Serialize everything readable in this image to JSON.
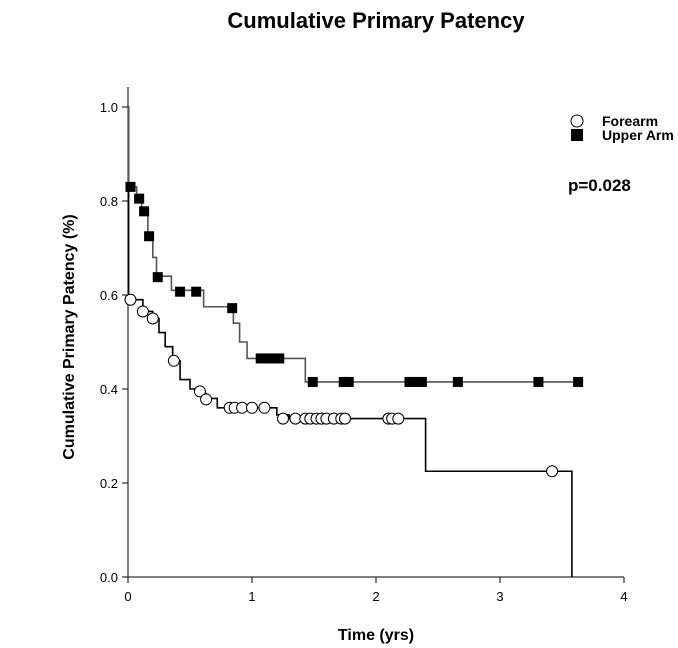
{
  "chart_data": {
    "type": "line",
    "title": "Cumulative Primary Patency",
    "xlabel": "Time (yrs)",
    "ylabel": "Cumulative Primary Patency (%)",
    "xlim": [
      0,
      4
    ],
    "ylim": [
      0,
      1.0
    ],
    "x_ticks": [
      "0",
      "1",
      "2",
      "3",
      "4"
    ],
    "y_ticks": [
      "0.0",
      "0.2",
      "0.4",
      "0.6",
      "0.8",
      "1.0"
    ],
    "annotation": "p=0.028",
    "legend_position": "top-right",
    "series": [
      {
        "name": "Forearm",
        "color": "#000000",
        "marker": "open-circle",
        "step_points": [
          [
            0,
            1.0
          ],
          [
            0.005,
            0.6
          ],
          [
            0.04,
            0.59
          ],
          [
            0.12,
            0.565
          ],
          [
            0.2,
            0.55
          ],
          [
            0.25,
            0.52
          ],
          [
            0.3,
            0.49
          ],
          [
            0.36,
            0.46
          ],
          [
            0.42,
            0.42
          ],
          [
            0.5,
            0.4
          ],
          [
            0.58,
            0.39
          ],
          [
            0.63,
            0.38
          ],
          [
            0.72,
            0.36
          ],
          [
            1.2,
            0.345
          ],
          [
            1.3,
            0.337
          ],
          [
            2.4,
            0.225
          ],
          [
            3.58,
            0.0
          ]
        ],
        "censored": [
          [
            0.02,
            0.59
          ],
          [
            0.12,
            0.565
          ],
          [
            0.2,
            0.55
          ],
          [
            0.37,
            0.46
          ],
          [
            0.58,
            0.395
          ],
          [
            0.63,
            0.378
          ],
          [
            0.82,
            0.36
          ],
          [
            0.86,
            0.36
          ],
          [
            0.92,
            0.36
          ],
          [
            1.0,
            0.36
          ],
          [
            1.1,
            0.36
          ],
          [
            1.25,
            0.337
          ],
          [
            1.35,
            0.337
          ],
          [
            1.43,
            0.337
          ],
          [
            1.47,
            0.337
          ],
          [
            1.52,
            0.337
          ],
          [
            1.56,
            0.337
          ],
          [
            1.6,
            0.337
          ],
          [
            1.66,
            0.337
          ],
          [
            1.72,
            0.337
          ],
          [
            1.75,
            0.337
          ],
          [
            2.1,
            0.337
          ],
          [
            2.13,
            0.337
          ],
          [
            2.18,
            0.337
          ],
          [
            3.42,
            0.225
          ]
        ]
      },
      {
        "name": "Upper Arm",
        "color": "#555555",
        "marker": "filled-square",
        "step_points": [
          [
            0,
            1.0
          ],
          [
            0.005,
            0.83
          ],
          [
            0.07,
            0.81
          ],
          [
            0.11,
            0.78
          ],
          [
            0.16,
            0.725
          ],
          [
            0.2,
            0.68
          ],
          [
            0.23,
            0.64
          ],
          [
            0.35,
            0.61
          ],
          [
            0.61,
            0.575
          ],
          [
            0.85,
            0.54
          ],
          [
            0.9,
            0.5
          ],
          [
            0.96,
            0.465
          ],
          [
            1.43,
            0.415
          ]
        ],
        "censored": [
          [
            0.02,
            0.83
          ],
          [
            0.09,
            0.805
          ],
          [
            0.13,
            0.778
          ],
          [
            0.17,
            0.725
          ],
          [
            0.24,
            0.638
          ],
          [
            0.42,
            0.607
          ],
          [
            0.55,
            0.607
          ],
          [
            0.84,
            0.572
          ],
          [
            1.07,
            0.465
          ],
          [
            1.12,
            0.465
          ],
          [
            1.17,
            0.465
          ],
          [
            1.22,
            0.465
          ],
          [
            1.49,
            0.415
          ],
          [
            1.74,
            0.415
          ],
          [
            1.78,
            0.415
          ],
          [
            2.27,
            0.415
          ],
          [
            2.32,
            0.415
          ],
          [
            2.37,
            0.415
          ],
          [
            2.66,
            0.415
          ],
          [
            3.31,
            0.415
          ],
          [
            3.63,
            0.415
          ]
        ]
      }
    ]
  }
}
